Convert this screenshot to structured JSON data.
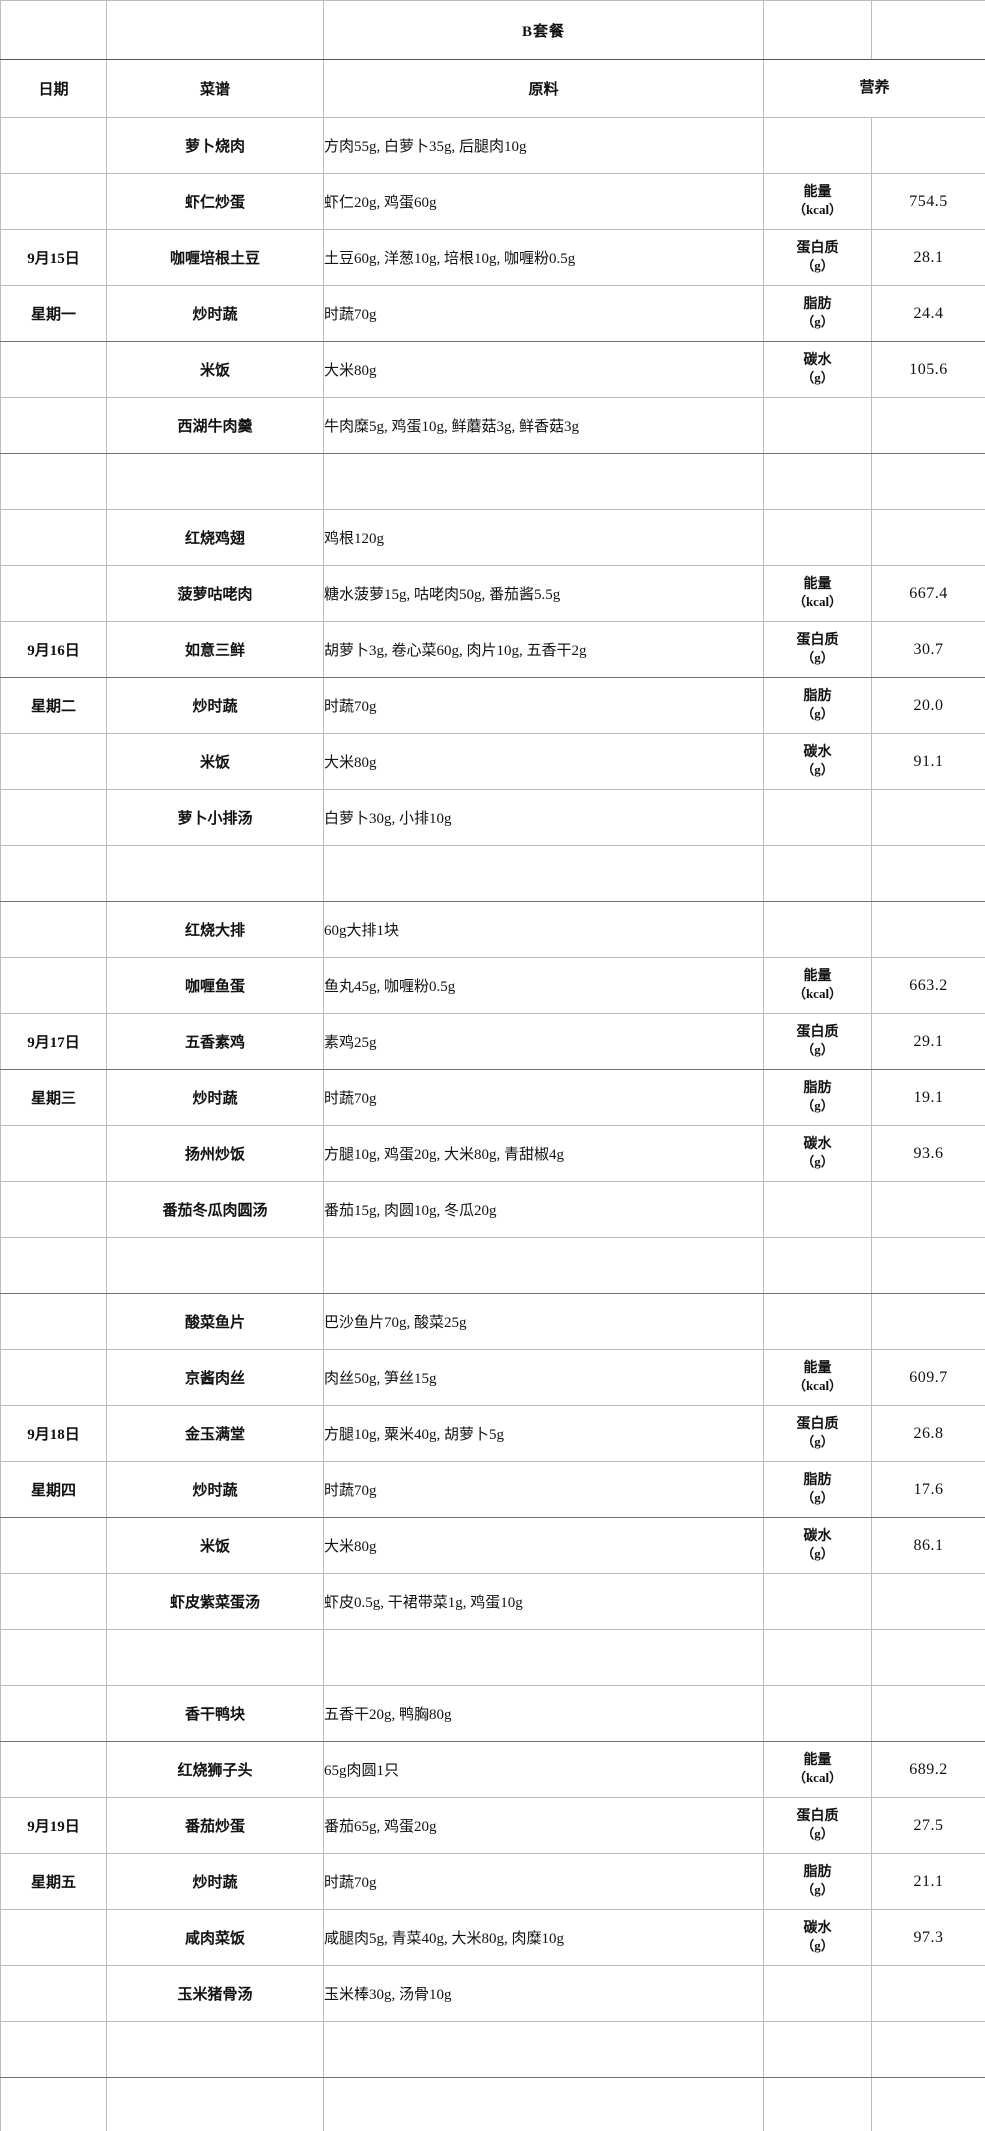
{
  "title": "B套餐",
  "columns": {
    "date": "日期",
    "menu": "菜谱",
    "ingredients": "原料",
    "nutrition": "营养"
  },
  "nutrients": [
    {
      "key": "energy",
      "label": "能量",
      "unit": "（kcal）"
    },
    {
      "key": "protein",
      "label": "蛋白质",
      "unit": "（g）"
    },
    {
      "key": "fat",
      "label": "脂肪",
      "unit": "（g）"
    },
    {
      "key": "carb",
      "label": "碳水",
      "unit": "（g）"
    }
  ],
  "days": [
    {
      "date": "9月15日",
      "weekday": "星期一",
      "dishes": [
        {
          "name": "萝卜烧肉",
          "ingredients": "方肉55g, 白萝卜35g, 后腿肉10g"
        },
        {
          "name": "虾仁炒蛋",
          "ingredients": "虾仁20g, 鸡蛋60g"
        },
        {
          "name": "咖喱培根土豆",
          "ingredients": "土豆60g, 洋葱10g, 培根10g, 咖喱粉0.5g"
        },
        {
          "name": "炒时蔬",
          "ingredients": "时蔬70g"
        },
        {
          "name": "米饭",
          "ingredients": "大米80g"
        },
        {
          "name": "西湖牛肉羹",
          "ingredients": "牛肉糜5g, 鸡蛋10g, 鲜蘑菇3g, 鲜香菇3g"
        }
      ],
      "nutrition": {
        "energy": "754.5",
        "protein": "28.1",
        "fat": "24.4",
        "carb": "105.6"
      }
    },
    {
      "date": "9月16日",
      "weekday": "星期二",
      "dishes": [
        {
          "name": "红烧鸡翅",
          "ingredients": "鸡根120g"
        },
        {
          "name": "菠萝咕咾肉",
          "ingredients": "糖水菠萝15g, 咕咾肉50g, 番茄酱5.5g"
        },
        {
          "name": "如意三鲜",
          "ingredients": "胡萝卜3g, 卷心菜60g, 肉片10g, 五香干2g"
        },
        {
          "name": "炒时蔬",
          "ingredients": "时蔬70g"
        },
        {
          "name": "米饭",
          "ingredients": "大米80g"
        },
        {
          "name": "萝卜小排汤",
          "ingredients": "白萝卜30g, 小排10g"
        }
      ],
      "nutrition": {
        "energy": "667.4",
        "protein": "30.7",
        "fat": "20.0",
        "carb": "91.1"
      }
    },
    {
      "date": "9月17日",
      "weekday": "星期三",
      "dishes": [
        {
          "name": "红烧大排",
          "ingredients": "60g大排1块"
        },
        {
          "name": "咖喱鱼蛋",
          "ingredients": "鱼丸45g, 咖喱粉0.5g"
        },
        {
          "name": "五香素鸡",
          "ingredients": "素鸡25g"
        },
        {
          "name": "炒时蔬",
          "ingredients": "时蔬70g"
        },
        {
          "name": "扬州炒饭",
          "ingredients": "方腿10g, 鸡蛋20g, 大米80g, 青甜椒4g"
        },
        {
          "name": "番茄冬瓜肉圆汤",
          "ingredients": "番茄15g, 肉圆10g, 冬瓜20g"
        }
      ],
      "nutrition": {
        "energy": "663.2",
        "protein": "29.1",
        "fat": "19.1",
        "carb": "93.6"
      }
    },
    {
      "date": "9月18日",
      "weekday": "星期四",
      "dishes": [
        {
          "name": "酸菜鱼片",
          "ingredients": "巴沙鱼片70g, 酸菜25g"
        },
        {
          "name": "京酱肉丝",
          "ingredients": "肉丝50g, 笋丝15g"
        },
        {
          "name": "金玉满堂",
          "ingredients": "方腿10g, 粟米40g, 胡萝卜5g"
        },
        {
          "name": "炒时蔬",
          "ingredients": "时蔬70g"
        },
        {
          "name": "米饭",
          "ingredients": "大米80g"
        },
        {
          "name": "虾皮紫菜蛋汤",
          "ingredients": "虾皮0.5g, 干裙带菜1g, 鸡蛋10g"
        }
      ],
      "nutrition": {
        "energy": "609.7",
        "protein": "26.8",
        "fat": "17.6",
        "carb": "86.1"
      }
    },
    {
      "date": "9月19日",
      "weekday": "星期五",
      "dishes": [
        {
          "name": "香干鸭块",
          "ingredients": "五香干20g, 鸭胸80g"
        },
        {
          "name": "红烧狮子头",
          "ingredients": "65g肉圆1只"
        },
        {
          "name": "番茄炒蛋",
          "ingredients": "番茄65g, 鸡蛋20g"
        },
        {
          "name": "炒时蔬",
          "ingredients": "时蔬70g"
        },
        {
          "name": "咸肉菜饭",
          "ingredients": "咸腿肉5g, 青菜40g, 大米80g, 肉糜10g"
        },
        {
          "name": "玉米猪骨汤",
          "ingredients": "玉米棒30g, 汤骨10g"
        }
      ],
      "nutrition": {
        "energy": "689.2",
        "protein": "27.5",
        "fat": "21.1",
        "carb": "97.3"
      }
    }
  ],
  "colors": {
    "background": "#ffffff",
    "text": "#111111",
    "border_light": "#bdbdbd",
    "border_dark": "#454545"
  }
}
